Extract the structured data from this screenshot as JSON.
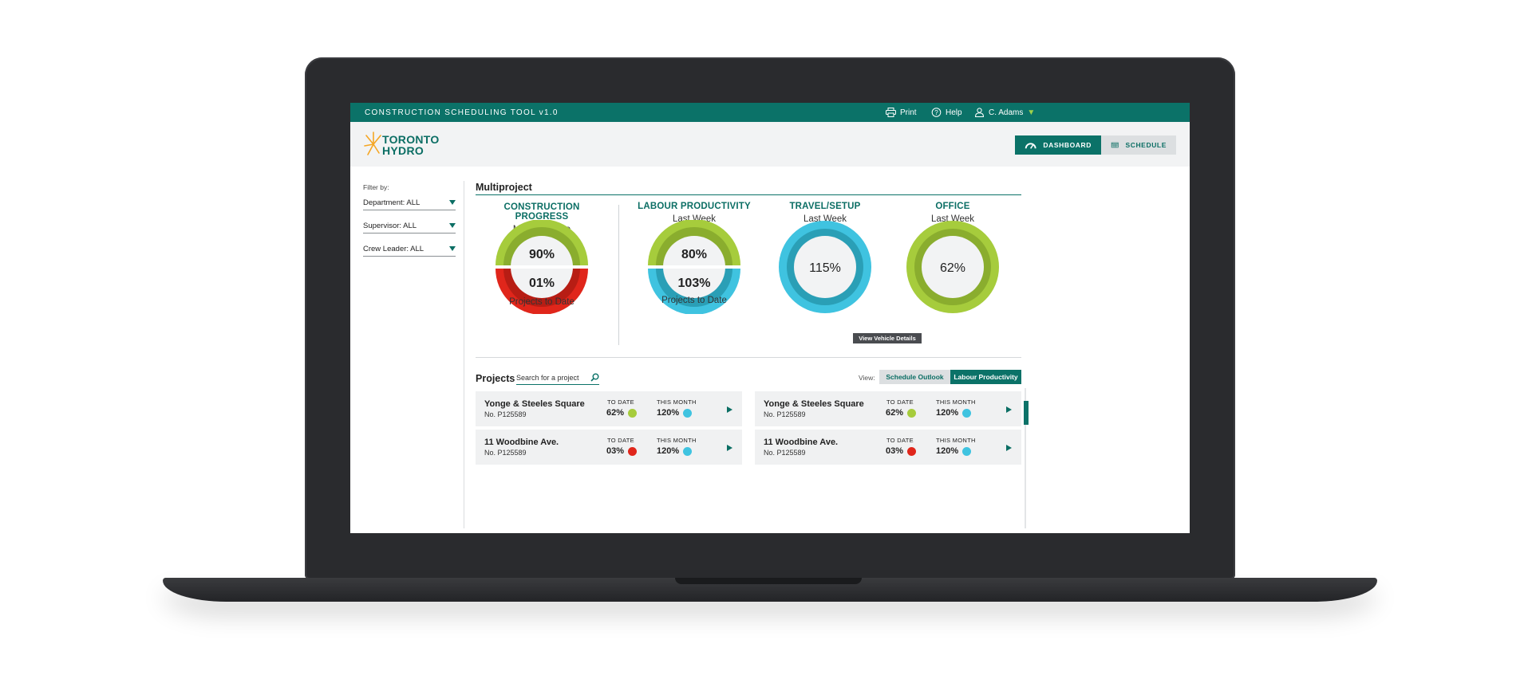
{
  "app": {
    "title": "CONSTRUCTION SCHEDULING TOOL  v1.0",
    "print_label": "Print",
    "help_label": "Help",
    "user_name": "C. Adams",
    "user_caret": "▼"
  },
  "logo": {
    "line1": "TORONTO",
    "line2": "HYDRO"
  },
  "nav": {
    "dashboard_label": "DASHBOARD",
    "schedule_label": "SCHEDULE"
  },
  "filters": {
    "label": "Filter by:",
    "department": "Department: ALL",
    "supervisor": "Supervisor: ALL",
    "crew_leader": "Crew Leader: ALL"
  },
  "multiproject": {
    "title": "Multiproject",
    "construction": {
      "title": "CONSTRUCTION PROGRESS",
      "subtitle": "Month to Date",
      "top_value": "90%",
      "bottom_value": "01%",
      "footer": "Projects to Date"
    },
    "labour": {
      "title": "LABOUR PRODUCTIVITY",
      "subtitle": "Last Week",
      "top_value": "80%",
      "bottom_value": "103%",
      "footer": "Projects to Date"
    },
    "travel": {
      "title": "TRAVEL/SETUP",
      "subtitle": "Last Week",
      "value": "115%",
      "button_label": "View Vehicle Details"
    },
    "office": {
      "title": "OFFICE",
      "subtitle": "Last Week",
      "value": "62%"
    }
  },
  "projects": {
    "title": "Projects",
    "search_placeholder": "Search for a project",
    "view_label": "View:",
    "view_options": [
      "Schedule Outlook",
      "Labour Productivity"
    ],
    "to_date_label": "TO DATE",
    "this_month_label": "THIS MONTH",
    "items": [
      {
        "name": "Yonge & Steeles Square",
        "number": "No. P125589",
        "to_date": "62%",
        "to_date_status": "green",
        "this_month": "120%",
        "this_month_status": "blue"
      },
      {
        "name": "11 Woodbine Ave.",
        "number": "No. P125589",
        "to_date": "03%",
        "to_date_status": "red",
        "this_month": "120%",
        "this_month_status": "blue"
      },
      {
        "name": "Yonge & Steeles Square",
        "number": "No. P125589",
        "to_date": "62%",
        "to_date_status": "green",
        "this_month": "120%",
        "this_month_status": "blue"
      },
      {
        "name": "11 Woodbine Ave.",
        "number": "No. P125589",
        "to_date": "03%",
        "to_date_status": "red",
        "this_month": "120%",
        "this_month_status": "blue"
      }
    ]
  },
  "colors": {
    "brand_teal": "#0b7268",
    "green": "#a6cc3c",
    "red": "#e0261b",
    "blue": "#3fc3e0"
  }
}
